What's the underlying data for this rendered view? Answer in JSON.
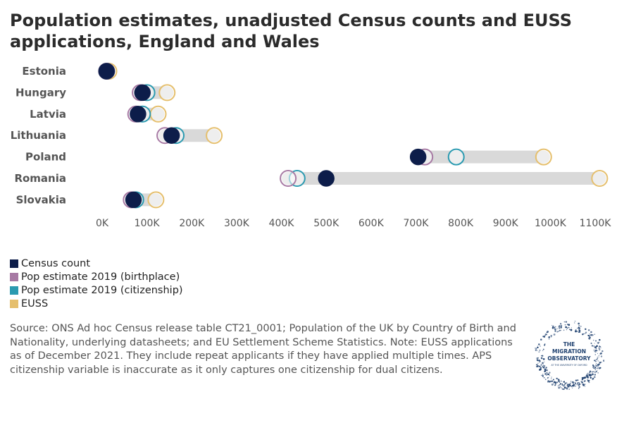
{
  "chart_data": {
    "type": "dot",
    "title": "Population estimates, unadjusted Census counts and EUSS applications, England and Wales",
    "categories": [
      "Estonia",
      "Hungary",
      "Latvia",
      "Lithuania",
      "Poland",
      "Romania",
      "Slovakia"
    ],
    "xlim": [
      0,
      1100000
    ],
    "x_ticks": [
      0,
      100000,
      200000,
      300000,
      400000,
      500000,
      600000,
      700000,
      800000,
      900000,
      1000000,
      1100000
    ],
    "x_tick_labels": [
      "0K",
      "100K",
      "200K",
      "300K",
      "400K",
      "500K",
      "600K",
      "700K",
      "800K",
      "900K",
      "1000K",
      "1100K"
    ],
    "series": [
      {
        "name": "Census count",
        "color": "#0d1d4a",
        "filled": true,
        "values": [
          10000,
          90000,
          80000,
          155000,
          705000,
          500000,
          70000
        ]
      },
      {
        "name": "Pop estimate 2019 (birthplace)",
        "color": "#a77aa4",
        "filled": false,
        "values": [
          10000,
          85000,
          75000,
          140000,
          720000,
          415000,
          65000
        ]
      },
      {
        "name": "Pop estimate 2019 (citizenship)",
        "color": "#2b9ab0",
        "filled": false,
        "values": [
          10000,
          100000,
          90000,
          165000,
          790000,
          435000,
          75000
        ]
      },
      {
        "name": "EUSS",
        "color": "#e5bf6d",
        "filled": false,
        "values": [
          15000,
          145000,
          125000,
          250000,
          985000,
          1110000,
          120000
        ]
      }
    ],
    "range_bar_color": "#d9d9d9",
    "legend_position": "bottom-left"
  },
  "source_note": "Source: ONS Ad hoc Census release table CT21_0001; Population of the UK by Country of Birth and Nationality, underlying datasheets; and EU Settlement Scheme Statistics. Note: EUSS applications as of December 2021. They include repeat applicants if they have applied multiple times. APS citizenship variable is inaccurate as it only captures one citizenship for dual citizens.",
  "logo": {
    "text_lines": [
      "THE",
      "MIGRATION",
      "OBSERVATORY",
      "AT THE UNIVERSITY OF OXFORD"
    ],
    "color": "#1d3f6e"
  }
}
